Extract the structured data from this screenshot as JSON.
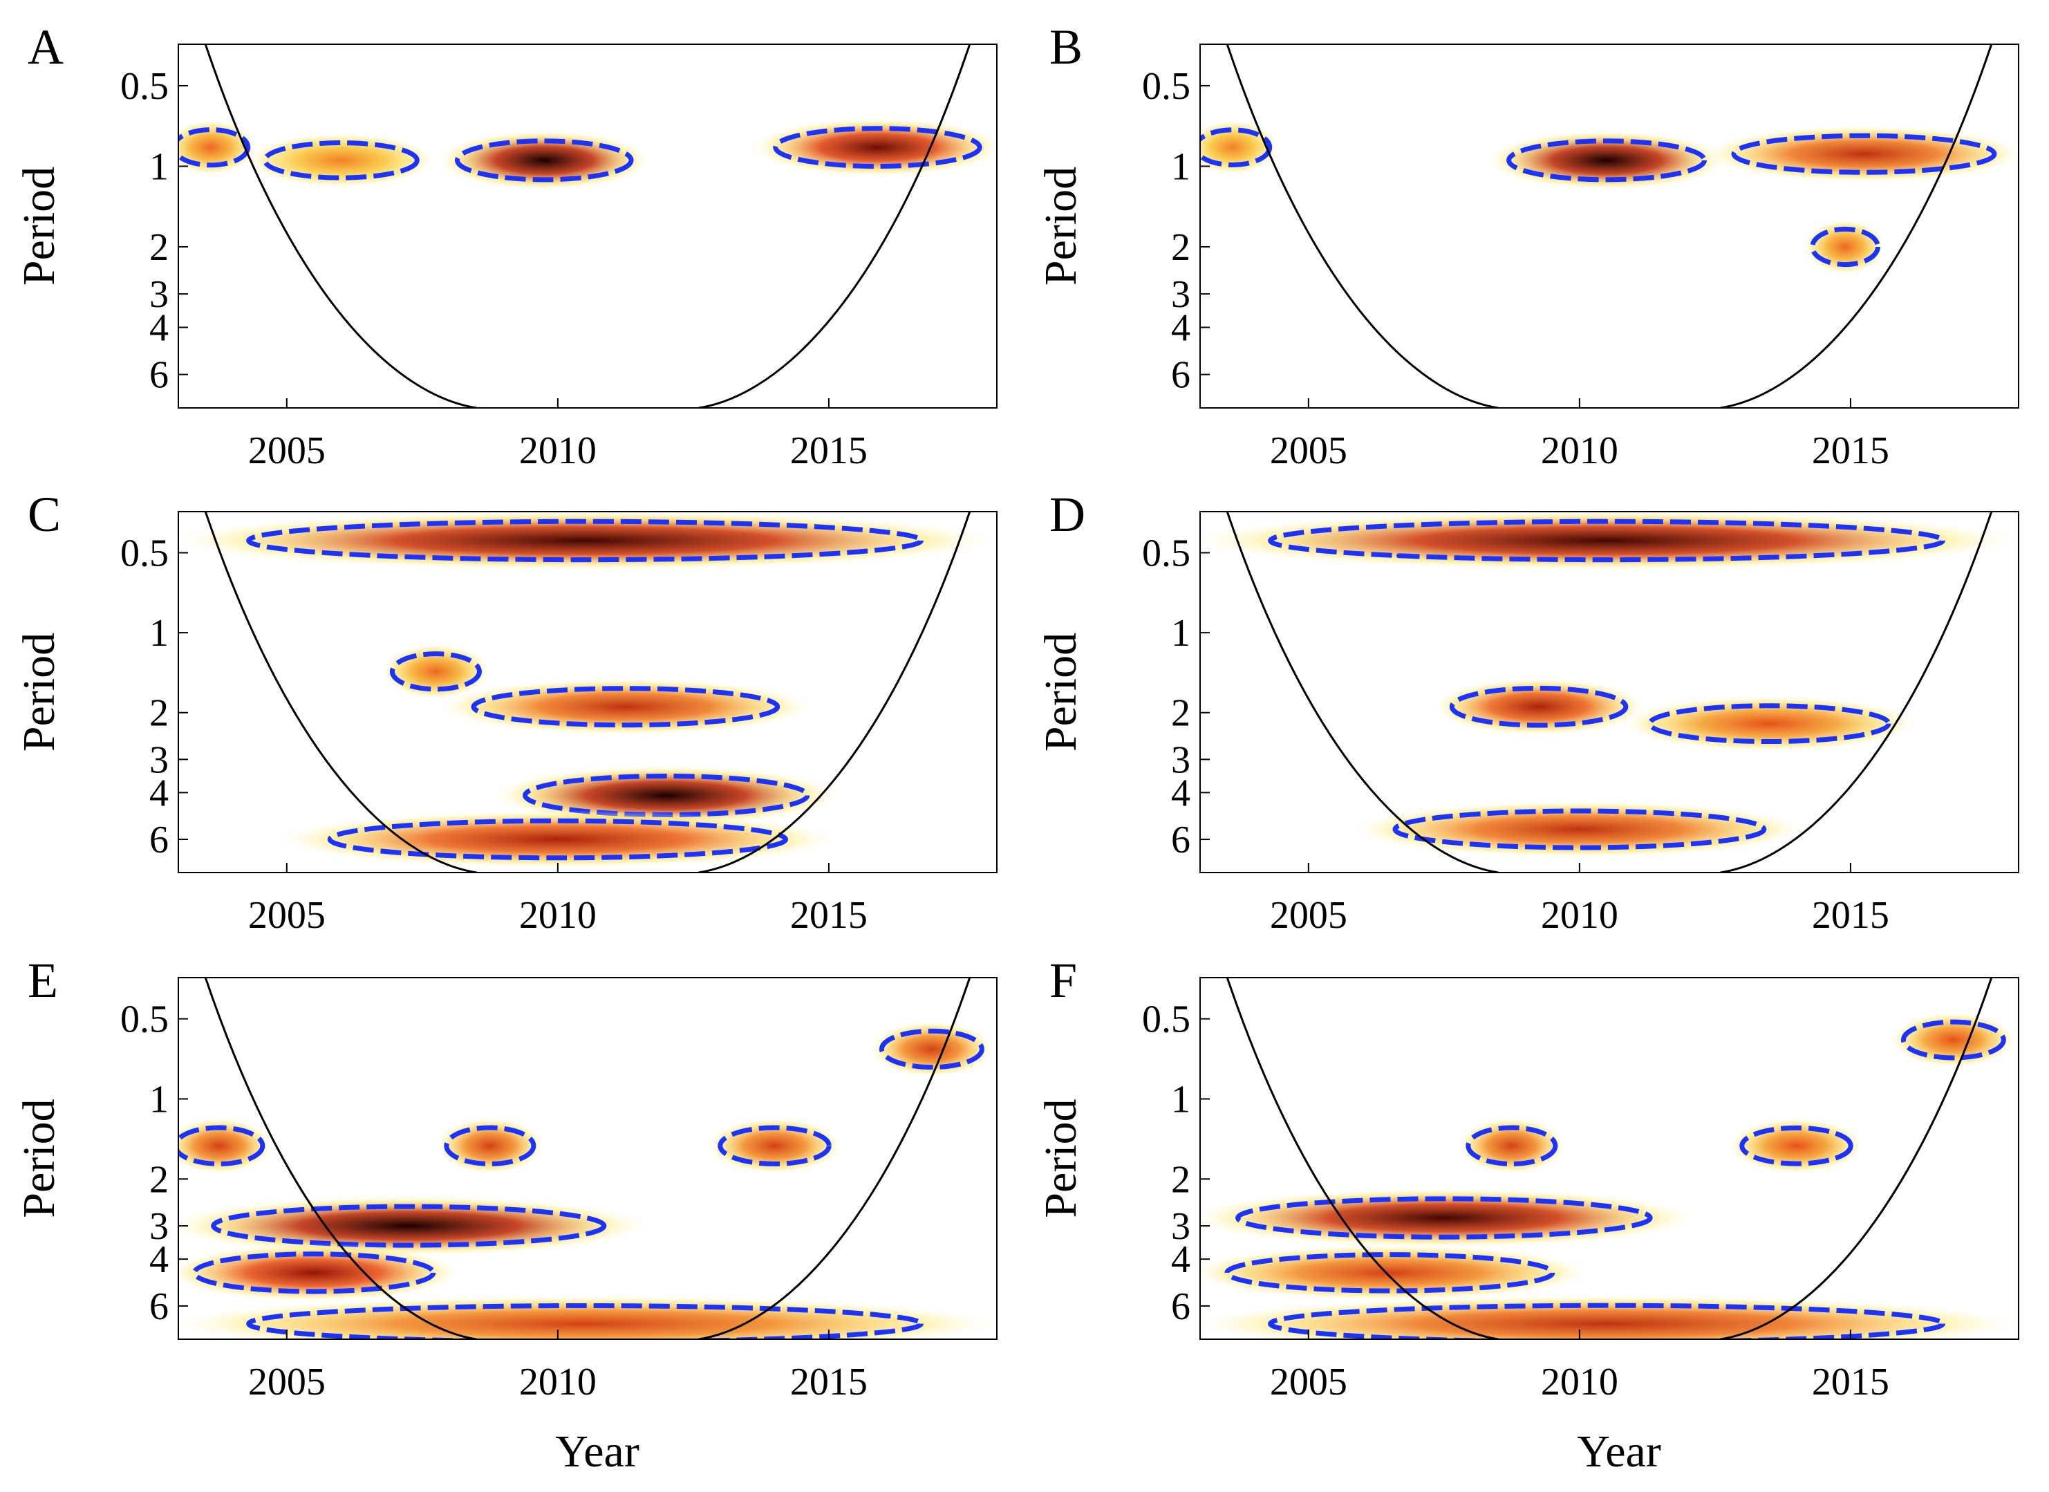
{
  "figure": {
    "x_axis_label": "Year",
    "y_axis_label": "Period",
    "x_ticks": [
      2005,
      2010,
      2015
    ],
    "y_ticks": [
      0.5,
      1,
      2,
      3,
      4,
      6
    ],
    "colors": {
      "coi": "#000000",
      "contour": "#1a33ff",
      "low_power": "#ffffff",
      "mid_power": "#ffe040",
      "high_power": "#e8501a",
      "peak_power": "#1a0000"
    }
  },
  "chart_data": [
    {
      "panel": "A",
      "type": "heatmap",
      "title": "",
      "xlabel": "",
      "ylabel": "Period",
      "xlim": [
        2003,
        2018.1
      ],
      "ylim_period": [
        0.35,
        8
      ],
      "high_power_regions": [
        {
          "year_from": 2003,
          "year_to": 2004.2,
          "period": 0.85,
          "level": 0.6
        },
        {
          "year_from": 2004.5,
          "year_to": 2007.5,
          "period": 0.95,
          "level": 0.55
        },
        {
          "year_from": 2008,
          "year_to": 2011.5,
          "period": 0.95,
          "level": 1.0
        },
        {
          "year_from": 2013.8,
          "year_to": 2018,
          "period": 0.85,
          "level": 0.9
        }
      ],
      "x_tick_labels": [
        "2005",
        "2010",
        "2015"
      ],
      "y_tick_labels": [
        "0.5",
        "1",
        "2",
        "3",
        "4",
        "6"
      ]
    },
    {
      "panel": "B",
      "type": "heatmap",
      "title": "",
      "xlabel": "",
      "ylabel": "Period",
      "xlim": [
        2003,
        2018.1
      ],
      "ylim_period": [
        0.35,
        8
      ],
      "high_power_regions": [
        {
          "year_from": 2003,
          "year_to": 2004.2,
          "period": 0.85,
          "level": 0.55
        },
        {
          "year_from": 2008.5,
          "year_to": 2012.5,
          "period": 0.95,
          "level": 1.0
        },
        {
          "year_from": 2012.5,
          "year_to": 2018,
          "period": 0.9,
          "level": 0.75
        },
        {
          "year_from": 2014.4,
          "year_to": 2015.4,
          "period": 2.0,
          "level": 0.6
        }
      ],
      "x_tick_labels": [
        "2005",
        "2010",
        "2015"
      ],
      "y_tick_labels": [
        "0.5",
        "1",
        "2",
        "3",
        "4",
        "6"
      ]
    },
    {
      "panel": "C",
      "type": "heatmap",
      "title": "",
      "xlabel": "",
      "ylabel": "Period",
      "xlim": [
        2003,
        2018.1
      ],
      "ylim_period": [
        0.35,
        8
      ],
      "high_power_regions": [
        {
          "year_from": 2003,
          "year_to": 2018,
          "period": 0.45,
          "level": 0.95
        },
        {
          "year_from": 2007,
          "year_to": 2008.5,
          "period": 1.4,
          "level": 0.6
        },
        {
          "year_from": 2008,
          "year_to": 2014.5,
          "period": 1.9,
          "level": 0.75
        },
        {
          "year_from": 2009,
          "year_to": 2015,
          "period": 4.1,
          "level": 1.0
        },
        {
          "year_from": 2005,
          "year_to": 2015,
          "period": 6.0,
          "level": 0.8
        }
      ],
      "x_tick_labels": [
        "2005",
        "2010",
        "2015"
      ],
      "y_tick_labels": [
        "0.5",
        "1",
        "2",
        "3",
        "4",
        "6"
      ]
    },
    {
      "panel": "D",
      "type": "heatmap",
      "title": "",
      "xlabel": "",
      "ylabel": "Period",
      "xlim": [
        2003,
        2018.1
      ],
      "ylim_period": [
        0.35,
        8
      ],
      "high_power_regions": [
        {
          "year_from": 2003,
          "year_to": 2018,
          "period": 0.45,
          "level": 0.95
        },
        {
          "year_from": 2007.5,
          "year_to": 2011,
          "period": 1.9,
          "level": 0.8
        },
        {
          "year_from": 2011,
          "year_to": 2016,
          "period": 2.2,
          "level": 0.65
        },
        {
          "year_from": 2006,
          "year_to": 2014,
          "period": 5.5,
          "level": 0.75
        }
      ],
      "x_tick_labels": [
        "2005",
        "2010",
        "2015"
      ],
      "y_tick_labels": [
        "0.5",
        "1",
        "2",
        "3",
        "4",
        "6"
      ]
    },
    {
      "panel": "E",
      "type": "heatmap",
      "title": "",
      "xlabel": "Year",
      "ylabel": "Period",
      "xlim": [
        2003,
        2018.1
      ],
      "ylim_period": [
        0.35,
        8
      ],
      "high_power_regions": [
        {
          "year_from": 2003,
          "year_to": 2004.5,
          "period": 1.5,
          "level": 0.7
        },
        {
          "year_from": 2008,
          "year_to": 2009.5,
          "period": 1.5,
          "level": 0.7
        },
        {
          "year_from": 2013,
          "year_to": 2015,
          "period": 1.5,
          "level": 0.7
        },
        {
          "year_from": 2003,
          "year_to": 2011.5,
          "period": 3.0,
          "level": 1.0
        },
        {
          "year_from": 2003,
          "year_to": 2008,
          "period": 4.5,
          "level": 0.85
        },
        {
          "year_from": 2003,
          "year_to": 2018,
          "period": 7.0,
          "level": 0.7
        },
        {
          "year_from": 2016,
          "year_to": 2017.8,
          "period": 0.65,
          "level": 0.7
        }
      ],
      "x_tick_labels": [
        "2005",
        "2010",
        "2015"
      ],
      "y_tick_labels": [
        "0.5",
        "1",
        "2",
        "3",
        "4",
        "6"
      ]
    },
    {
      "panel": "F",
      "type": "heatmap",
      "title": "",
      "xlabel": "Year",
      "ylabel": "Period",
      "xlim": [
        2003,
        2018.1
      ],
      "ylim_period": [
        0.35,
        8
      ],
      "high_power_regions": [
        {
          "year_from": 2008,
          "year_to": 2009.5,
          "period": 1.5,
          "level": 0.7
        },
        {
          "year_from": 2013,
          "year_to": 2015,
          "period": 1.5,
          "level": 0.65
        },
        {
          "year_from": 2003,
          "year_to": 2012,
          "period": 2.8,
          "level": 0.95
        },
        {
          "year_from": 2003,
          "year_to": 2010,
          "period": 4.5,
          "level": 0.7
        },
        {
          "year_from": 2003,
          "year_to": 2018,
          "period": 7.0,
          "level": 0.75
        },
        {
          "year_from": 2016,
          "year_to": 2017.8,
          "period": 0.6,
          "level": 0.65
        }
      ],
      "x_tick_labels": [
        "2005",
        "2010",
        "2015"
      ],
      "y_tick_labels": [
        "0.5",
        "1",
        "2",
        "3",
        "4",
        "6"
      ]
    }
  ]
}
